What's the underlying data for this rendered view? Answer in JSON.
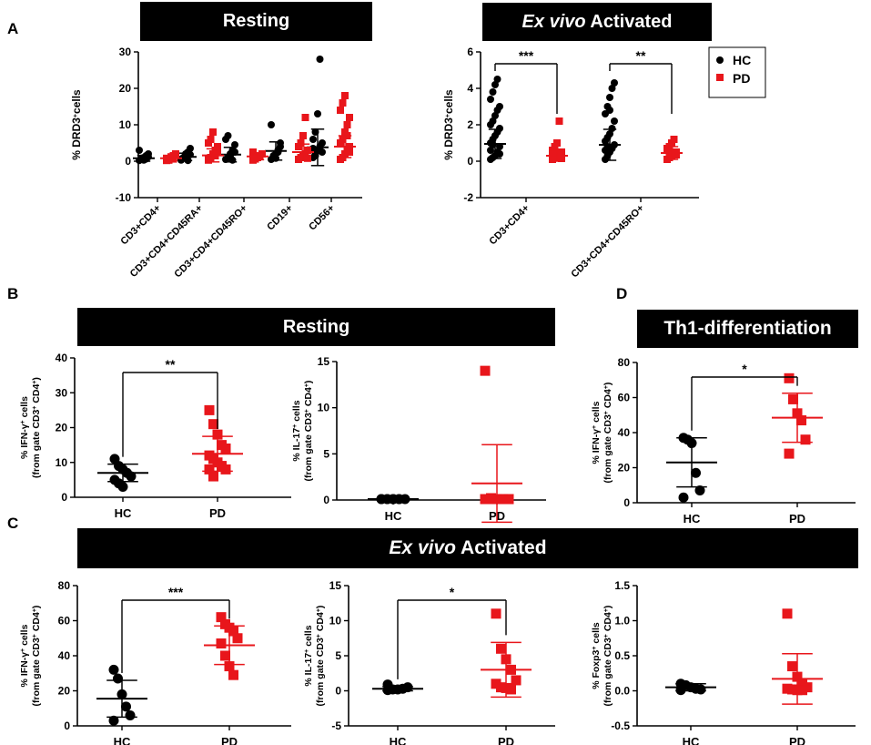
{
  "panel_labels": {
    "a": "A",
    "b": "B",
    "c": "C",
    "d": "D"
  },
  "banners": {
    "a_resting": "Resting",
    "a_activated_em": "Ex vivo",
    "a_activated_rest": " Activated",
    "b_resting": "Resting",
    "d_th1": "Th1-differentiation",
    "c_activated_em": "Ex vivo",
    "c_activated_rest": " Activated"
  },
  "legend": {
    "hc": "HC",
    "pd": "PD"
  },
  "colors": {
    "hc": "#000000",
    "pd": "#e8161b",
    "banner": "#000000"
  },
  "chart_data": [
    {
      "id": "A-resting",
      "type": "scatter",
      "title": "Resting",
      "ylabel": "% DRD3+cells",
      "ylim": [
        -10,
        30
      ],
      "yticks": [
        -10,
        0,
        10,
        20,
        30
      ],
      "categories": [
        "CD3+CD4+",
        "CD3+CD4+CD45RA+",
        "CD3+CD4+CD45RO+",
        "CD19+",
        "CD56+"
      ],
      "series": [
        {
          "name": "HC",
          "values": [
            [
              0.2,
              0.5,
              1,
              1.5,
              2,
              3,
              0.8,
              0.3,
              0.6,
              1.2
            ],
            [
              0.3,
              0.8,
              1.5,
              2.5,
              3.5,
              0.5,
              1,
              2,
              0.2,
              1.8
            ],
            [
              0.5,
              1,
              2,
              3,
              4.5,
              6,
              7,
              1.5,
              0.3,
              2.5
            ],
            [
              0.5,
              1,
              2,
              3,
              4,
              10,
              1.5,
              0.8,
              2.5,
              5
            ],
            [
              1,
              2,
              3,
              4,
              5,
              6,
              8,
              13,
              28,
              2.5,
              3.5,
              1.5
            ]
          ],
          "mean": [
            0.8,
            1.2,
            1.8,
            2.8,
            3.8
          ],
          "sd": [
            0.8,
            1.0,
            2.0,
            2.5,
            5.0
          ]
        },
        {
          "name": "PD",
          "values": [
            [
              0.2,
              0.5,
              1,
              1.5,
              2,
              0.8,
              0.3,
              1.2,
              0.6
            ],
            [
              0.5,
              1,
              2,
              3,
              4,
              5,
              6,
              8,
              1.5,
              2.5,
              0.3
            ],
            [
              0.3,
              0.6,
              1,
              1.5,
              2,
              2.5,
              0.8,
              1.2
            ],
            [
              0.5,
              1,
              1.5,
              2,
              3,
              4,
              5,
              7,
              12,
              0.8
            ],
            [
              0.5,
              1,
              2,
              3,
              4,
              5,
              6,
              8,
              10,
              12,
              14,
              16,
              18,
              7,
              2.5
            ]
          ],
          "mean": [
            0.8,
            1.6,
            1.3,
            2.5,
            4.0
          ],
          "sd": [
            0.6,
            1.8,
            0.9,
            2.2,
            3.0
          ]
        }
      ]
    },
    {
      "id": "A-activated",
      "type": "scatter",
      "title": "Ex vivo Activated",
      "ylabel": "% DRD3+cells",
      "ylim": [
        -2,
        6
      ],
      "yticks": [
        -2,
        0,
        2,
        4,
        6
      ],
      "categories": [
        "CD3+CD4+",
        "CD3+CD4+CD45RO+"
      ],
      "significance": [
        "***",
        "**"
      ],
      "series": [
        {
          "name": "HC",
          "values": [
            [
              0.1,
              0.2,
              0.3,
              0.5,
              0.8,
              1,
              1.2,
              1.4,
              1.6,
              1.8,
              2,
              2.2,
              2.5,
              2.8,
              3,
              3.4,
              3.8,
              4.2,
              4.5,
              0.4,
              0.6,
              0.9
            ],
            [
              0.1,
              0.3,
              0.5,
              0.7,
              0.9,
              1.1,
              1.3,
              1.5,
              1.8,
              2.2,
              2.6,
              3,
              3.5,
              4,
              4.3,
              0.6,
              0.8,
              2.8
            ]
          ],
          "mean": [
            0.95,
            0.9
          ],
          "sd": [
            0.8,
            0.85
          ]
        },
        {
          "name": "PD",
          "values": [
            [
              0.1,
              0.2,
              0.3,
              0.4,
              0.5,
              0.6,
              0.8,
              1,
              2.2,
              0.15,
              0.35,
              0.45
            ],
            [
              0.1,
              0.2,
              0.3,
              0.4,
              0.5,
              0.6,
              0.8,
              1,
              1.2,
              0.35,
              0.7
            ]
          ],
          "mean": [
            0.3,
            0.45
          ],
          "sd": [
            0.3,
            0.35
          ]
        }
      ]
    },
    {
      "id": "B-IFN",
      "type": "scatter",
      "ylabel_l1": "% IFN-γ+ cells",
      "ylabel_l2": "(from gate CD3+ CD4+)",
      "ylim": [
        0,
        40
      ],
      "yticks": [
        0,
        10,
        20,
        30,
        40
      ],
      "categories": [
        "HC",
        "PD"
      ],
      "significance": "**",
      "series": [
        {
          "name": "HC",
          "values": [
            11,
            9,
            8,
            7,
            6,
            5,
            4,
            3
          ],
          "mean": 7,
          "sd": 2.5
        },
        {
          "name": "PD",
          "values": [
            25,
            21,
            18,
            15,
            14,
            12,
            11,
            10,
            9,
            8,
            8,
            6
          ],
          "mean": 12.5,
          "sd": 5
        }
      ]
    },
    {
      "id": "B-IL17",
      "type": "scatter",
      "ylabel_l1": "% IL-17+ cells",
      "ylabel_l2": "(from gate CD3+ CD4+)",
      "ylim": [
        0,
        15
      ],
      "yticks": [
        0,
        5,
        10,
        15
      ],
      "categories": [
        "HC",
        "PD"
      ],
      "series": [
        {
          "name": "HC",
          "values": [
            0.1,
            0.1,
            0.1,
            0.1,
            0.1,
            0.1,
            0.1,
            0.1,
            0.1
          ],
          "mean": 0.1,
          "sd": 0.1
        },
        {
          "name": "PD",
          "values": [
            14,
            0.2,
            0.1,
            0.1,
            0.1,
            0.1,
            0.1,
            0.1,
            0.1,
            0.1,
            0.1
          ],
          "mean": 1.8,
          "sd": 4.2
        }
      ]
    },
    {
      "id": "D-Th1",
      "type": "scatter",
      "ylabel_l1": "% IFN-γ+ cells",
      "ylabel_l2": "(from gate CD3+ CD4+)",
      "ylim": [
        0,
        80
      ],
      "yticks": [
        0,
        20,
        40,
        60,
        80
      ],
      "categories": [
        "HC",
        "PD"
      ],
      "significance": "*",
      "series": [
        {
          "name": "HC",
          "values": [
            37,
            36,
            34,
            17,
            7,
            3
          ],
          "mean": 23,
          "sd": 14
        },
        {
          "name": "PD",
          "values": [
            71,
            59,
            51,
            47,
            36,
            28
          ],
          "mean": 48.5,
          "sd": 14
        }
      ]
    },
    {
      "id": "C-IFN",
      "type": "scatter",
      "ylabel_l1": "% IFN-γ+ cells",
      "ylabel_l2": "(from gate CD3+ CD4+)",
      "ylim": [
        0,
        80
      ],
      "yticks": [
        0,
        20,
        40,
        60,
        80
      ],
      "categories": [
        "HC",
        "PD"
      ],
      "significance": "***",
      "series": [
        {
          "name": "HC",
          "values": [
            32,
            27,
            18,
            11,
            6,
            3
          ],
          "mean": 15.5,
          "sd": 10.5
        },
        {
          "name": "PD",
          "values": [
            62,
            58,
            56,
            54,
            50,
            47,
            40,
            34,
            29
          ],
          "mean": 46,
          "sd": 11
        }
      ]
    },
    {
      "id": "C-IL17",
      "type": "scatter",
      "ylabel_l1": "% IL-17+ cells",
      "ylabel_l2": "(from gate CD3+ CD4+)",
      "ylim": [
        -5,
        15
      ],
      "yticks": [
        -5,
        0,
        5,
        10,
        15
      ],
      "categories": [
        "HC",
        "PD"
      ],
      "significance": "*",
      "series": [
        {
          "name": "HC",
          "values": [
            0.1,
            0.2,
            0.2,
            0.3,
            0.5,
            0.9
          ],
          "mean": 0.3,
          "sd": 0.3
        },
        {
          "name": "PD",
          "values": [
            11,
            6,
            4.5,
            3,
            1.5,
            1,
            0.5,
            0.4,
            0.2
          ],
          "mean": 3,
          "sd": 3.9
        }
      ]
    },
    {
      "id": "C-Foxp3",
      "type": "scatter",
      "ylabel_l1": "% Foxp3+ cells",
      "ylabel_l2": "(from gate CD3+ CD4+)",
      "ylim": [
        -0.5,
        1.5
      ],
      "yticks": [
        -0.5,
        0.0,
        0.5,
        1.0,
        1.5
      ],
      "categories": [
        "HC",
        "PD"
      ],
      "series": [
        {
          "name": "HC",
          "values": [
            0.1,
            0.08,
            0.05,
            0.03,
            0.02,
            0.01
          ],
          "mean": 0.05,
          "sd": 0.05
        },
        {
          "name": "PD",
          "values": [
            1.1,
            0.35,
            0.2,
            0.1,
            0.05,
            0.03,
            0.02,
            0.01,
            0.01
          ],
          "mean": 0.17,
          "sd": 0.36
        }
      ]
    }
  ]
}
